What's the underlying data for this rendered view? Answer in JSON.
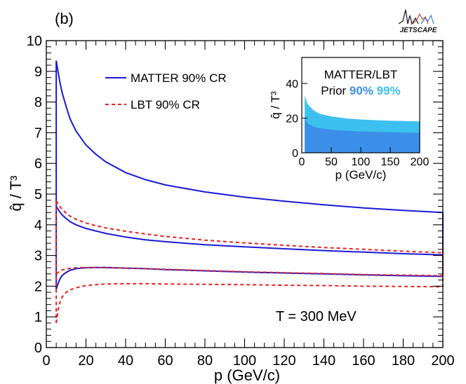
{
  "panel_label": "(b)",
  "logo_text": "JETSCAPE",
  "colors": {
    "matter": "#1a1ad6",
    "lbt": "#e8231f",
    "prior90": "#3b8fe8",
    "prior99": "#3cc0ef",
    "frame": "#000000"
  },
  "chart_data": [
    {
      "type": "line",
      "title": "",
      "xlabel": "p (GeV/c)",
      "ylabel": "q̂ / T³",
      "xlim": [
        0,
        200
      ],
      "ylim": [
        0,
        10
      ],
      "xticks": [
        0,
        20,
        40,
        60,
        80,
        100,
        120,
        140,
        160,
        180,
        200
      ],
      "yticks": [
        0,
        1,
        2,
        3,
        4,
        5,
        6,
        7,
        8,
        9,
        10
      ],
      "annotation": "T = 300 MeV",
      "legend": {
        "placement": "top-left",
        "entries": [
          "MATTER 90% CR",
          "LBT 90% CR"
        ]
      },
      "x": [
        5,
        6,
        7,
        8,
        10,
        12,
        15,
        20,
        25,
        30,
        40,
        50,
        60,
        80,
        100,
        120,
        140,
        160,
        180,
        200
      ],
      "series": [
        {
          "name": "MATTER 90% CR",
          "style": "solid",
          "color": "#1a1ad6",
          "upper": [
            9.35,
            8.95,
            8.6,
            8.3,
            7.85,
            7.45,
            7.05,
            6.6,
            6.3,
            6.05,
            5.7,
            5.47,
            5.3,
            5.07,
            4.9,
            4.77,
            4.65,
            4.55,
            4.47,
            4.4
          ],
          "lower": [
            1.9,
            2.1,
            2.25,
            2.35,
            2.45,
            2.52,
            2.57,
            2.6,
            2.61,
            2.61,
            2.59,
            2.57,
            2.54,
            2.5,
            2.46,
            2.43,
            2.4,
            2.37,
            2.34,
            2.32
          ],
          "median": [
            4.6,
            4.5,
            4.4,
            4.32,
            4.2,
            4.1,
            4.0,
            3.88,
            3.8,
            3.72,
            3.6,
            3.51,
            3.45,
            3.35,
            3.28,
            3.22,
            3.16,
            3.11,
            3.06,
            3.02
          ]
        },
        {
          "name": "LBT 90% CR",
          "style": "dashed",
          "color": "#e8231f",
          "upper": [
            4.78,
            4.68,
            4.58,
            4.5,
            4.38,
            4.28,
            4.18,
            4.06,
            3.97,
            3.9,
            3.79,
            3.7,
            3.62,
            3.5,
            3.41,
            3.33,
            3.26,
            3.2,
            3.14,
            3.09
          ],
          "lower": [
            0.8,
            1.25,
            1.5,
            1.65,
            1.8,
            1.88,
            1.95,
            2.02,
            2.05,
            2.07,
            2.08,
            2.08,
            2.07,
            2.06,
            2.05,
            2.03,
            2.02,
            2.0,
            1.99,
            1.98
          ],
          "median": [
            2.4,
            2.45,
            2.5,
            2.53,
            2.56,
            2.58,
            2.6,
            2.61,
            2.61,
            2.6,
            2.59,
            2.57,
            2.55,
            2.51,
            2.47,
            2.44,
            2.41,
            2.38,
            2.36,
            2.34
          ]
        }
      ]
    },
    {
      "type": "area",
      "title": "MATTER/LBT",
      "subtitle_prefix": "Prior",
      "legend_entries": [
        "90%",
        "99%"
      ],
      "xlabel": "p (GeV/c)",
      "ylabel": "q̂ / T³",
      "xlim": [
        0,
        200
      ],
      "ylim": [
        0,
        55
      ],
      "xticks": [
        0,
        50,
        100,
        150,
        200
      ],
      "yticks": [
        0,
        20,
        40
      ],
      "x": [
        5,
        10,
        20,
        30,
        50,
        75,
        100,
        125,
        150,
        175,
        200
      ],
      "series": [
        {
          "name": "99%",
          "color": "#3cc0ef",
          "values": [
            33,
            28,
            24.5,
            22.5,
            21,
            19.8,
            19.2,
            18.8,
            18.5,
            18.3,
            18.1
          ]
        },
        {
          "name": "90%",
          "color": "#3b8fe8",
          "values": [
            20,
            17,
            15,
            14.2,
            13.3,
            12.7,
            12.3,
            12,
            11.8,
            11.6,
            11.5
          ]
        }
      ]
    }
  ]
}
